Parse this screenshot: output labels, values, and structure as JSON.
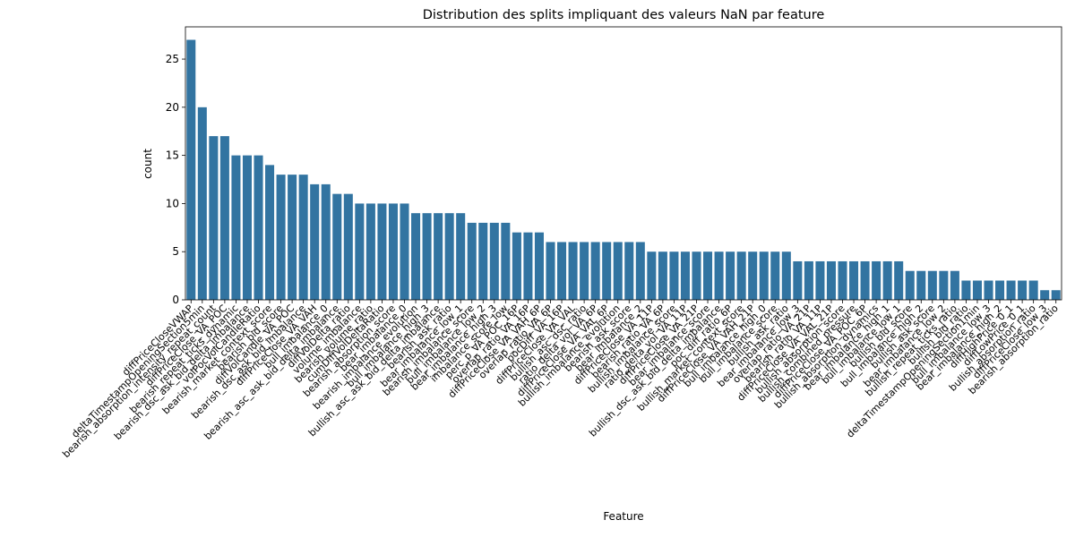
{
  "chart_data": {
    "type": "bar",
    "title": "Distribution des splits impliquant des valeurs NaN par feature",
    "x_label": "Feature",
    "y_label": "count",
    "categories": [
      "diffPriceCloseVWAP",
      "deltaTimestampOpeningSection5min",
      "bearish_absorption_intensity_repeat_count",
      "diffPriceClose_VA_POC",
      "bearish_repeat_ticks_dynamic",
      "bearish_dsc_ask_bid_delta_imbalance",
      "volPocVolCandleRatio",
      "bearish_market_context_score",
      "bearish_bid_score",
      "diffVolCandle_VA_POC",
      "bearish_dsc_ask_bid_imbalance",
      "diffPriceClose_VA_VAH",
      "bull_imbalance_0",
      "bearish_asc_ask_bid_delta_imbalance",
      "diffVolDelta_ratio",
      "volume_imbalance",
      "bearish_volume_ratio",
      "cumDiffVolDeltaRatio",
      "bearish_absorption_score",
      "bear_imbalance_0",
      "bearish_imbalance_evolution",
      "bull_imbalance_high_3",
      "bullish_asc_ask_bid_delta_imbalance",
      "bearish_ask_ratio",
      "bear_imbalance_low_1",
      "bearish_imbalance_score",
      "bull_imbalance_low_2",
      "bear_imbalance_high_3",
      "imbalance_score_low",
      "perc_p_VA_POC_16P",
      "overlap_ratio_VA_16P",
      "diffPriceClose_VA_VAH_6P",
      "overlap_ratio_VA_6P",
      "pocDiff_VA_16P",
      "diffPriceClose_VA_VAL",
      "bullish_asc_dsc_ratio",
      "ratio_delta_vol_VA_6P",
      "diffPriceClose_VA_VAL_6P",
      "bullish_imbalance_evolution",
      "bearish_ask_score",
      "bear_imbalance_2",
      "diffPriceClose_VA_11P",
      "bearish_ratio_VA_6P",
      "bullish_imbalance_score",
      "ratio_delta_vol_VA_11P",
      "diffPriceClose_VA_21P",
      "bear_imbalance_score",
      "bullish_dsc_ask_bid_delta_imbalance",
      "poc_diff_ratio_6P",
      "bullish_market_context_score",
      "diffPriceClose_VA_VAH_21P",
      "bull_imbalance_high_0",
      "bull_imbalance_score",
      "bullish_ask_ratio",
      "bear_imbalance_low_3",
      "overlap_ratio_VA_21P",
      "bearish_ratio_VA_11P",
      "diffPriceClose_VA_VAL_21P",
      "bullish_absorption_score",
      "bullish_combined_pressure",
      "diffPriceClose_VA_POC_6P",
      "bullish_absorption_dynamics",
      "bear_imbalance_high_1",
      "bull_imbalance_low_1",
      "bullish_bid_score",
      "bull_imbalance_high_2",
      "bullish_ask_score",
      "bear_imbalance_low_2",
      "bullish_repeat_ticks_ratio",
      "bullish_bid_ratio",
      "deltaTimestampOpeningSection1min",
      "bull_imbalance_low_3",
      "bear_imbalance_high_2",
      "diffHighPrice_0_1",
      "diffLowPrice_0_1",
      "bullish_absorption_ratio",
      "diffPriceClose_low_3",
      "bearish_absorption_ratio"
    ],
    "values": [
      27,
      20,
      17,
      17,
      15,
      15,
      15,
      14,
      13,
      13,
      13,
      12,
      12,
      11,
      11,
      10,
      10,
      10,
      10,
      10,
      9,
      9,
      9,
      9,
      9,
      8,
      8,
      8,
      8,
      7,
      7,
      7,
      6,
      6,
      6,
      6,
      6,
      6,
      6,
      6,
      6,
      5,
      5,
      5,
      5,
      5,
      5,
      5,
      5,
      5,
      5,
      5,
      5,
      5,
      4,
      4,
      4,
      4,
      4,
      4,
      4,
      4,
      4,
      4,
      3,
      3,
      3,
      3,
      3,
      2,
      2,
      2,
      2,
      2,
      2,
      2,
      1,
      1
    ],
    "color": "#3274a1",
    "ylim": [
      0,
      28.35
    ],
    "yticks": [
      0,
      5,
      10,
      15,
      20,
      25
    ],
    "grid": false
  }
}
